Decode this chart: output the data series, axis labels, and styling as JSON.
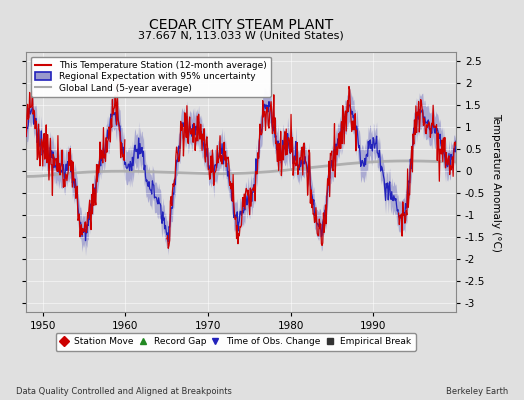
{
  "title": "CEDAR CITY STEAM PLANT",
  "subtitle": "37.667 N, 113.033 W (United States)",
  "ylabel": "Temperature Anomaly (°C)",
  "xlabel_footer": "Data Quality Controlled and Aligned at Breakpoints",
  "credit": "Berkeley Earth",
  "ylim": [
    -3.2,
    2.7
  ],
  "yticks": [
    -3,
    -2.5,
    -2,
    -1.5,
    -1,
    -0.5,
    0,
    0.5,
    1,
    1.5,
    2,
    2.5
  ],
  "xlim": [
    1948.0,
    2000.0
  ],
  "xticks": [
    1950,
    1960,
    1970,
    1980,
    1990
  ],
  "bg_color": "#e0e0e0",
  "plot_bg": "#e0e0e0",
  "station_color": "#cc0000",
  "regional_color": "#2222bb",
  "regional_fill": "#9999cc",
  "global_color": "#aaaaaa",
  "legend_items": [
    {
      "label": "This Temperature Station (12-month average)",
      "color": "#cc0000"
    },
    {
      "label": "Regional Expectation with 95% uncertainty",
      "color": "#2222bb"
    },
    {
      "label": "Global Land (5-year average)",
      "color": "#aaaaaa"
    }
  ],
  "marker_items": [
    {
      "label": "Station Move",
      "marker": "D",
      "color": "#cc0000"
    },
    {
      "label": "Record Gap",
      "marker": "^",
      "color": "#228822"
    },
    {
      "label": "Time of Obs. Change",
      "marker": "v",
      "color": "#2222bb"
    },
    {
      "label": "Empirical Break",
      "marker": "s",
      "color": "#333333"
    }
  ]
}
